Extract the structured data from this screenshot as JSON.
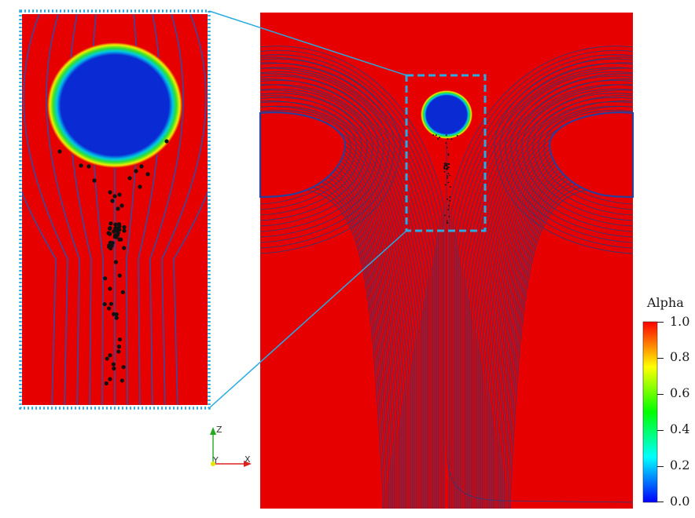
{
  "colorbar": {
    "title": "Alpha",
    "tick_labels": [
      "1.0",
      "0.8",
      "0.6",
      "0.4",
      "0.2",
      "0.0"
    ],
    "colormap": [
      "#0000ff",
      "#00ffff",
      "#00ff00",
      "#ffff00",
      "#ff0000"
    ]
  },
  "orientation_axes": {
    "z_label": "Z",
    "y_label": "Y",
    "x_label": "X",
    "z_color": "#22aa22",
    "y_color": "#e6e600",
    "x_color": "#dd2222"
  },
  "colors": {
    "liquid": "#e60000",
    "bubble": "#0a2bd4",
    "streamline": "#2a3a7a",
    "zoom_frame": "#29abe2",
    "particle": "#111111"
  }
}
